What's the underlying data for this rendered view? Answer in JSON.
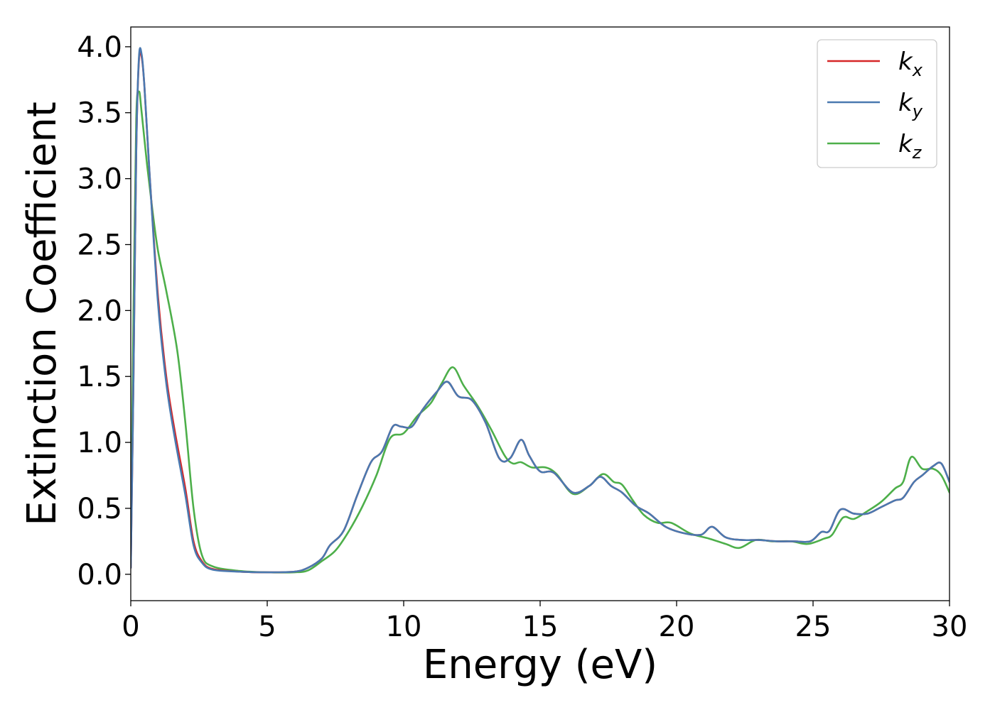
{
  "chart_data": {
    "type": "line",
    "xlabel": "Energy (eV)",
    "ylabel": "Extinction Coefficient",
    "xlim": [
      0,
      30
    ],
    "ylim": [
      -0.2,
      4.15
    ],
    "xticks": [
      0,
      5,
      10,
      15,
      20,
      25,
      30
    ],
    "yticks": [
      0.0,
      0.5,
      1.0,
      1.5,
      2.0,
      2.5,
      3.0,
      3.5,
      4.0
    ],
    "xtick_labels": [
      "0",
      "5",
      "10",
      "15",
      "20",
      "25",
      "30"
    ],
    "ytick_labels": [
      "0.0",
      "0.5",
      "1.0",
      "1.5",
      "2.0",
      "2.5",
      "3.0",
      "3.5",
      "4.0"
    ],
    "grid": false,
    "legend_position": "top-right",
    "series": [
      {
        "name": "k_x",
        "base": "k",
        "sub": "x",
        "color": "#d62728",
        "x": [
          0,
          0.1,
          0.2,
          0.3,
          0.4,
          0.5,
          0.7,
          1.0,
          1.3,
          1.6,
          2.0,
          2.3,
          2.6,
          3.0,
          4.0,
          5.0,
          6.0,
          6.5,
          7.0,
          7.3,
          7.8,
          8.3,
          8.8,
          9.2,
          9.6,
          9.9,
          10.3,
          10.7,
          11.2,
          11.6,
          12.0,
          12.5,
          13.0,
          13.5,
          13.9,
          14.3,
          14.6,
          15.0,
          15.5,
          16.2,
          16.8,
          17.2,
          17.6,
          18.0,
          18.5,
          19.0,
          19.6,
          20.3,
          20.9,
          21.3,
          21.8,
          22.4,
          23.0,
          23.7,
          24.3,
          24.9,
          25.3,
          25.6,
          26.0,
          26.5,
          27.0,
          27.5,
          28.0,
          28.3,
          28.7,
          29.0,
          29.4,
          29.7,
          30.0
        ],
        "values": [
          0.05,
          1.5,
          3.2,
          3.9,
          3.92,
          3.7,
          3.0,
          2.1,
          1.5,
          1.1,
          0.65,
          0.25,
          0.1,
          0.04,
          0.02,
          0.015,
          0.02,
          0.05,
          0.12,
          0.22,
          0.33,
          0.6,
          0.85,
          0.93,
          1.12,
          1.12,
          1.12,
          1.25,
          1.38,
          1.46,
          1.35,
          1.32,
          1.15,
          0.88,
          0.88,
          1.02,
          0.9,
          0.78,
          0.77,
          0.62,
          0.67,
          0.74,
          0.67,
          0.62,
          0.52,
          0.46,
          0.36,
          0.31,
          0.3,
          0.36,
          0.28,
          0.26,
          0.26,
          0.25,
          0.25,
          0.25,
          0.32,
          0.33,
          0.49,
          0.46,
          0.46,
          0.51,
          0.56,
          0.58,
          0.7,
          0.75,
          0.82,
          0.84,
          0.7
        ]
      },
      {
        "name": "k_y",
        "base": "k",
        "sub": "y",
        "color": "#4a79b0",
        "x": [
          0,
          0.1,
          0.2,
          0.3,
          0.4,
          0.5,
          0.7,
          1.0,
          1.3,
          1.6,
          2.0,
          2.3,
          2.6,
          3.0,
          4.0,
          5.0,
          6.0,
          6.5,
          7.0,
          7.3,
          7.8,
          8.3,
          8.8,
          9.2,
          9.6,
          9.9,
          10.3,
          10.7,
          11.2,
          11.6,
          12.0,
          12.5,
          13.0,
          13.5,
          13.9,
          14.3,
          14.6,
          15.0,
          15.5,
          16.2,
          16.8,
          17.2,
          17.6,
          18.0,
          18.5,
          19.0,
          19.6,
          20.3,
          20.9,
          21.3,
          21.8,
          22.4,
          23.0,
          23.7,
          24.3,
          24.9,
          25.3,
          25.6,
          26.0,
          26.5,
          27.0,
          27.5,
          28.0,
          28.3,
          28.7,
          29.0,
          29.4,
          29.7,
          30.0
        ],
        "values": [
          0.05,
          1.5,
          3.2,
          3.92,
          3.94,
          3.7,
          3.0,
          2.05,
          1.45,
          1.05,
          0.6,
          0.22,
          0.09,
          0.035,
          0.02,
          0.015,
          0.02,
          0.05,
          0.12,
          0.22,
          0.33,
          0.6,
          0.85,
          0.93,
          1.12,
          1.12,
          1.12,
          1.25,
          1.38,
          1.46,
          1.35,
          1.32,
          1.15,
          0.88,
          0.88,
          1.02,
          0.9,
          0.78,
          0.77,
          0.62,
          0.67,
          0.74,
          0.67,
          0.62,
          0.52,
          0.46,
          0.36,
          0.31,
          0.3,
          0.36,
          0.28,
          0.26,
          0.26,
          0.25,
          0.25,
          0.25,
          0.32,
          0.33,
          0.49,
          0.46,
          0.46,
          0.51,
          0.56,
          0.58,
          0.7,
          0.75,
          0.82,
          0.84,
          0.7
        ]
      },
      {
        "name": "k_z",
        "base": "k",
        "sub": "z",
        "color": "#4daf4a",
        "x": [
          0,
          0.1,
          0.2,
          0.3,
          0.4,
          0.6,
          0.8,
          1.0,
          1.3,
          1.7,
          2.0,
          2.3,
          2.6,
          3.0,
          4.0,
          5.0,
          6.0,
          6.5,
          7.0,
          7.5,
          8.0,
          8.5,
          9.0,
          9.5,
          10.0,
          10.5,
          11.0,
          11.4,
          11.8,
          12.2,
          12.7,
          13.2,
          13.7,
          14.0,
          14.3,
          14.7,
          15.2,
          15.6,
          16.2,
          16.8,
          17.3,
          17.7,
          18.0,
          18.4,
          18.8,
          19.3,
          19.8,
          20.5,
          21.2,
          21.8,
          22.3,
          22.9,
          23.5,
          24.2,
          24.8,
          25.4,
          25.7,
          26.1,
          26.5,
          27.0,
          27.5,
          28.0,
          28.3,
          28.6,
          29.0,
          29.4,
          29.7,
          30.0
        ],
        "values": [
          0.1,
          2.0,
          3.45,
          3.66,
          3.5,
          3.1,
          2.75,
          2.45,
          2.15,
          1.7,
          1.15,
          0.5,
          0.15,
          0.06,
          0.025,
          0.015,
          0.015,
          0.03,
          0.1,
          0.18,
          0.33,
          0.52,
          0.75,
          1.03,
          1.07,
          1.2,
          1.3,
          1.45,
          1.57,
          1.43,
          1.28,
          1.1,
          0.9,
          0.84,
          0.85,
          0.81,
          0.81,
          0.76,
          0.61,
          0.67,
          0.76,
          0.7,
          0.68,
          0.56,
          0.45,
          0.39,
          0.39,
          0.31,
          0.27,
          0.23,
          0.2,
          0.26,
          0.25,
          0.25,
          0.23,
          0.27,
          0.3,
          0.43,
          0.42,
          0.48,
          0.55,
          0.65,
          0.7,
          0.89,
          0.8,
          0.8,
          0.75,
          0.62
        ]
      }
    ]
  }
}
